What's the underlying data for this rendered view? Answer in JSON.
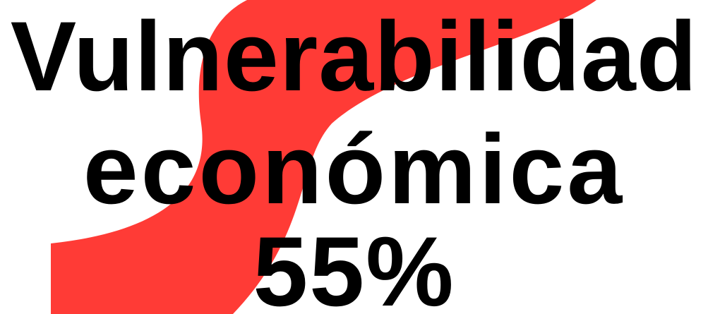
{
  "banner": {
    "line_1": "Vulnerabilidad",
    "line_2": "económica",
    "line_3": "55%",
    "value_percent": 55,
    "colors": {
      "background": "#ffffff",
      "swoosh": "#ff3b36",
      "text": "#000000"
    }
  }
}
